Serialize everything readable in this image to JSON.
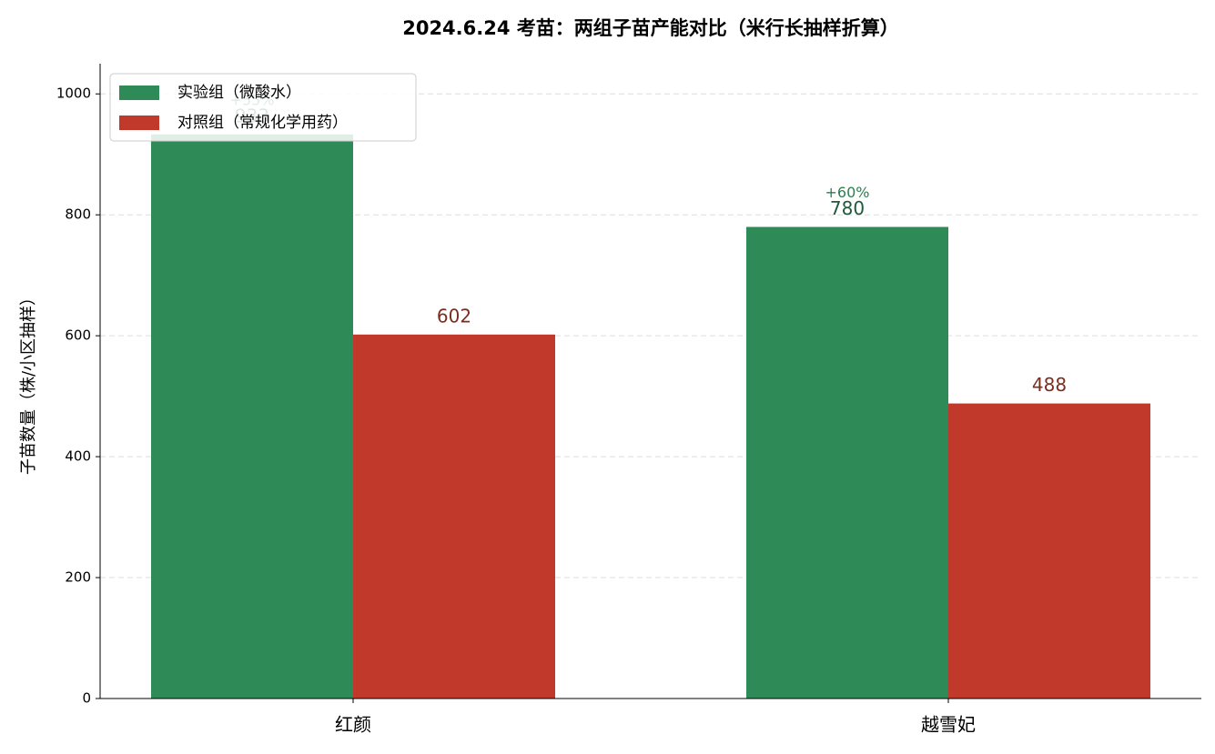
{
  "chart_data": {
    "type": "bar",
    "title": "2024.6.24 考苗：两组子苗产能对比（米行长抽样折算）",
    "y_label": "子苗数量（株/小区抽样）",
    "categories": [
      "红颜",
      "越雪妃"
    ],
    "series": [
      {
        "name": "实验组（微酸水）",
        "color": "#2e8b57",
        "label_color": "#1e5a3a",
        "values": [
          933,
          780
        ],
        "annotations": [
          "+55%",
          "+60%"
        ],
        "annotation_color": "#2e7d4f"
      },
      {
        "name": "对照组（常规化学用药）",
        "color": "#c0392b",
        "label_color": "#7b2e1f",
        "values": [
          602,
          488
        ]
      }
    ],
    "ylim": [
      0,
      1050
    ],
    "yticks": [
      0,
      200,
      400,
      600,
      800,
      1000
    ],
    "grid": true,
    "legend": "upper left"
  }
}
